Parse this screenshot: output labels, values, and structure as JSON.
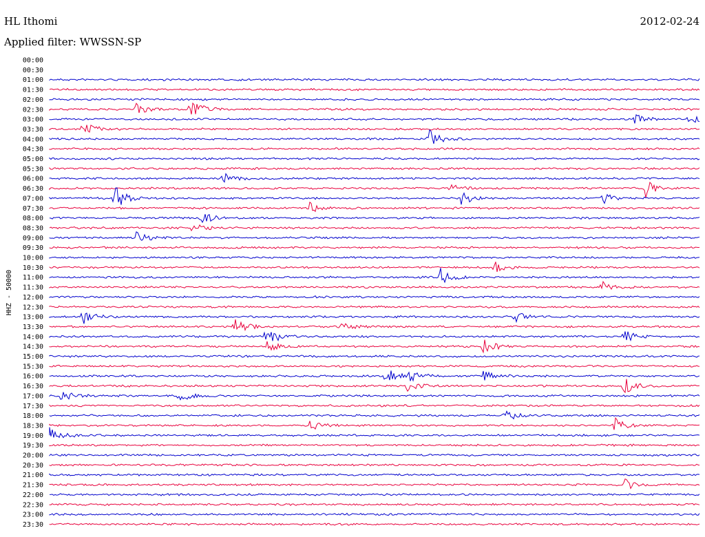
{
  "header": {
    "station": "HL Ithomi",
    "date": "2012-02-24",
    "filter_text": "Applied filter: WWSSN-SP"
  },
  "chart_data": {
    "type": "line",
    "title": "HL Ithomi",
    "subtitle": "Applied filter: WWSSN-SP",
    "ylabel": "HHZ - 50000",
    "xlabel": "",
    "grid": false,
    "colors": [
      "#0000cc",
      "#e8003c"
    ],
    "row_labels": [
      "00:00",
      "00:30",
      "01:00",
      "01:30",
      "02:00",
      "02:30",
      "03:00",
      "03:30",
      "04:00",
      "04:30",
      "05:00",
      "05:30",
      "06:00",
      "06:30",
      "07:00",
      "07:30",
      "08:00",
      "08:30",
      "09:00",
      "09:30",
      "10:00",
      "10:30",
      "11:00",
      "11:30",
      "12:00",
      "12:30",
      "13:00",
      "13:30",
      "14:00",
      "14:30",
      "15:00",
      "15:30",
      "16:00",
      "16:30",
      "17:00",
      "17:30",
      "18:00",
      "18:30",
      "19:00",
      "19:30",
      "20:00",
      "20:30",
      "21:00",
      "21:30",
      "22:00",
      "22:30",
      "23:00",
      "23:30"
    ],
    "trace_start_row": 2,
    "events": [
      {
        "row": 5,
        "minute": 4,
        "amp": 9
      },
      {
        "row": 5,
        "minute": 6.5,
        "amp": 14
      },
      {
        "row": 6,
        "minute": 27,
        "amp": 7
      },
      {
        "row": 6,
        "minute": 29.5,
        "amp": 8
      },
      {
        "row": 7,
        "minute": 1.5,
        "amp": 12
      },
      {
        "row": 8,
        "minute": 17.5,
        "amp": 16
      },
      {
        "row": 12,
        "minute": 8,
        "amp": 9
      },
      {
        "row": 13,
        "minute": 18.5,
        "amp": 7
      },
      {
        "row": 13,
        "minute": 27.5,
        "amp": 13
      },
      {
        "row": 14,
        "minute": 3,
        "amp": 18
      },
      {
        "row": 14,
        "minute": 19,
        "amp": 9
      },
      {
        "row": 14,
        "minute": 25.5,
        "amp": 9
      },
      {
        "row": 15,
        "minute": 12,
        "amp": 8
      },
      {
        "row": 16,
        "minute": 7,
        "amp": 9
      },
      {
        "row": 17,
        "minute": 6.5,
        "amp": 9
      },
      {
        "row": 18,
        "minute": 4,
        "amp": 9
      },
      {
        "row": 21,
        "minute": 20.5,
        "amp": 11
      },
      {
        "row": 22,
        "minute": 18,
        "amp": 14
      },
      {
        "row": 23,
        "minute": 25.5,
        "amp": 8
      },
      {
        "row": 26,
        "minute": 1.5,
        "amp": 12
      },
      {
        "row": 26,
        "minute": 21.5,
        "amp": 9
      },
      {
        "row": 27,
        "minute": 8.5,
        "amp": 15
      },
      {
        "row": 27,
        "minute": 13.5,
        "amp": 9
      },
      {
        "row": 28,
        "minute": 10,
        "amp": 14
      },
      {
        "row": 28,
        "minute": 26.5,
        "amp": 9
      },
      {
        "row": 29,
        "minute": 10,
        "amp": 8
      },
      {
        "row": 29,
        "minute": 20,
        "amp": 13
      },
      {
        "row": 32,
        "minute": 15.5,
        "amp": 12
      },
      {
        "row": 32,
        "minute": 16.5,
        "amp": 10
      },
      {
        "row": 32,
        "minute": 20,
        "amp": 8
      },
      {
        "row": 33,
        "minute": 16.5,
        "amp": 9
      },
      {
        "row": 33,
        "minute": 26.5,
        "amp": 12
      },
      {
        "row": 34,
        "minute": 0.5,
        "amp": 8
      },
      {
        "row": 34,
        "minute": 6,
        "amp": 10
      },
      {
        "row": 36,
        "minute": 21,
        "amp": 10
      },
      {
        "row": 37,
        "minute": 12,
        "amp": 7
      },
      {
        "row": 37,
        "minute": 26,
        "amp": 13
      },
      {
        "row": 38,
        "minute": 0,
        "amp": 12
      },
      {
        "row": 43,
        "minute": 26.5,
        "amp": 9
      }
    ]
  }
}
